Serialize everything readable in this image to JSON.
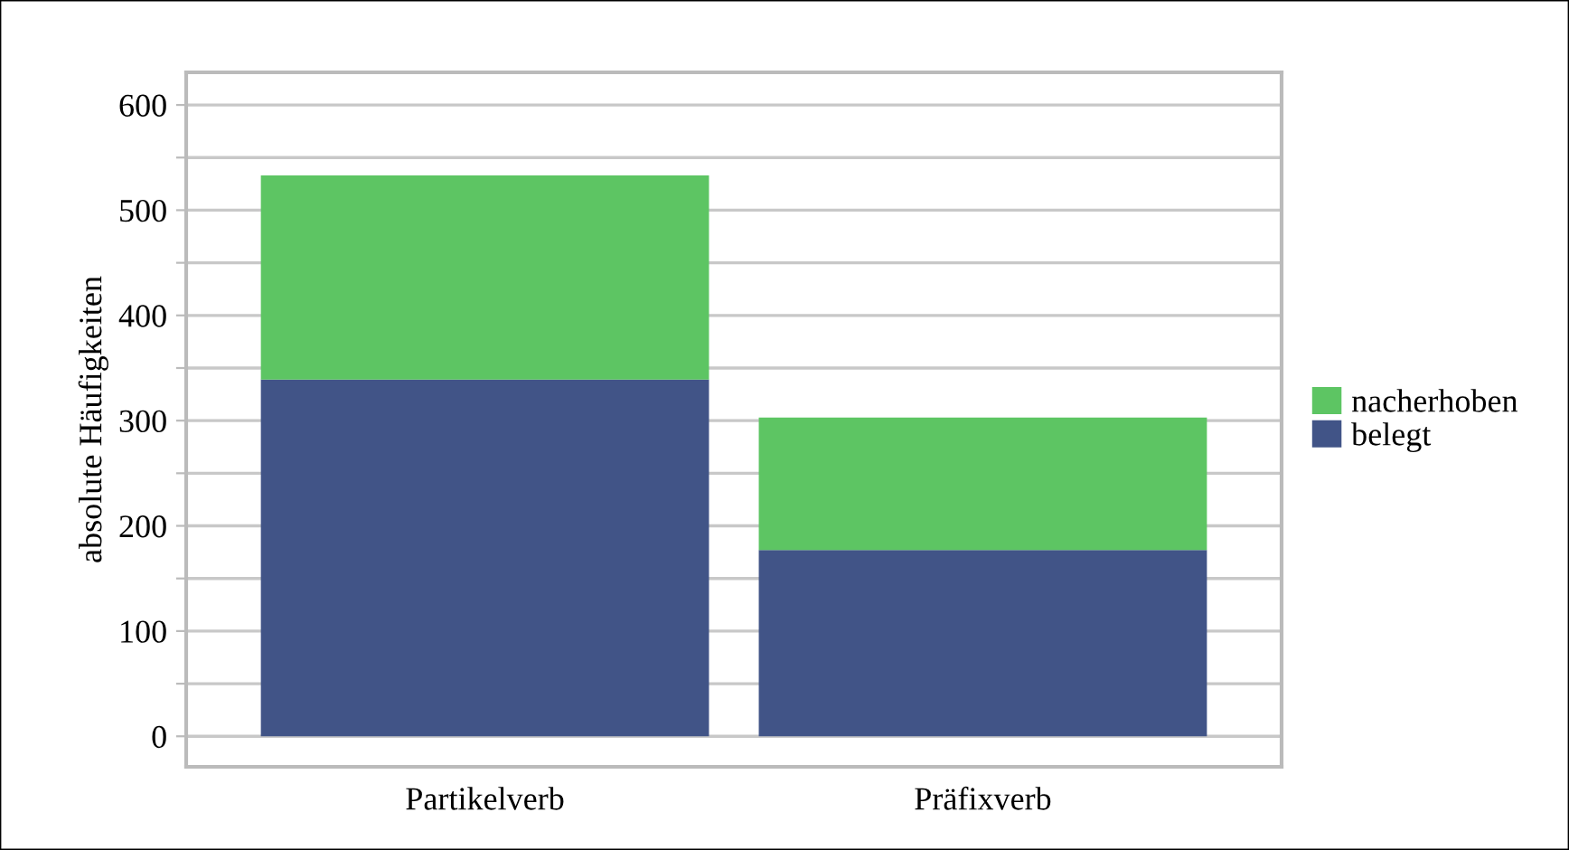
{
  "chart_data": {
    "type": "bar",
    "stacked": true,
    "ylabel": "absolute Häufigkeiten",
    "categories": [
      "Partikelverb",
      "Präfixverb"
    ],
    "series": [
      {
        "name": "belegt",
        "color": "#415487",
        "values": [
          339,
          177
        ]
      },
      {
        "name": "nacherhoben",
        "color": "#5dc563",
        "values": [
          194,
          126
        ]
      }
    ],
    "ylim": [
      -29,
      631
    ],
    "yticks": [
      0,
      {
        "value": 50,
        "label": null
      },
      100,
      {
        "value": 150,
        "label": null
      },
      200,
      {
        "value": 250,
        "label": null
      },
      300,
      {
        "value": 350,
        "label": null
      },
      400,
      {
        "value": 450,
        "label": null
      },
      500,
      {
        "value": 550,
        "label": null
      },
      600
    ],
    "grid": "y",
    "legend": "right"
  }
}
